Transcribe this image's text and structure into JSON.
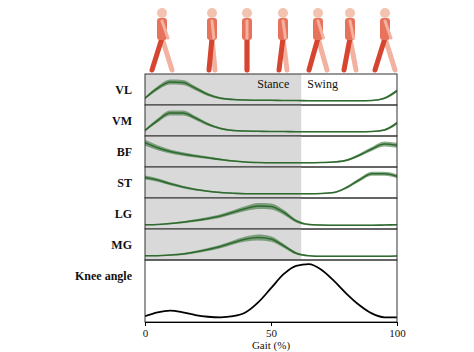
{
  "chart_data": [
    {
      "type": "line",
      "title": "VL",
      "color": "#2f6b2f",
      "xlim": [
        0,
        100
      ],
      "ylim": [
        0,
        1
      ],
      "tick_labels": false,
      "x": [
        0,
        5,
        10,
        15,
        20,
        25,
        30,
        35,
        40,
        45,
        50,
        55,
        60,
        65,
        70,
        75,
        80,
        85,
        90,
        95,
        100
      ],
      "values": [
        0.15,
        0.55,
        0.8,
        0.78,
        0.55,
        0.3,
        0.15,
        0.1,
        0.08,
        0.07,
        0.07,
        0.06,
        0.06,
        0.05,
        0.05,
        0.05,
        0.05,
        0.05,
        0.06,
        0.15,
        0.45
      ],
      "error": [
        0.04,
        0.08,
        0.1,
        0.1,
        0.08,
        0.06,
        0.04,
        0.03,
        0.02,
        0.02,
        0.02,
        0.02,
        0.02,
        0.02,
        0.02,
        0.02,
        0.02,
        0.02,
        0.02,
        0.04,
        0.06
      ]
    },
    {
      "type": "line",
      "title": "VM",
      "color": "#2f6b2f",
      "xlim": [
        0,
        100
      ],
      "ylim": [
        0,
        1
      ],
      "tick_labels": false,
      "x": [
        0,
        5,
        10,
        15,
        20,
        25,
        30,
        35,
        40,
        45,
        50,
        55,
        60,
        65,
        70,
        75,
        80,
        85,
        90,
        95,
        100
      ],
      "values": [
        0.1,
        0.5,
        0.8,
        0.8,
        0.6,
        0.35,
        0.18,
        0.1,
        0.08,
        0.07,
        0.06,
        0.06,
        0.05,
        0.05,
        0.05,
        0.05,
        0.05,
        0.05,
        0.06,
        0.12,
        0.4
      ],
      "error": [
        0.04,
        0.08,
        0.1,
        0.1,
        0.08,
        0.06,
        0.04,
        0.03,
        0.02,
        0.02,
        0.02,
        0.02,
        0.02,
        0.02,
        0.02,
        0.02,
        0.02,
        0.02,
        0.02,
        0.04,
        0.06
      ]
    },
    {
      "type": "line",
      "title": "BF",
      "color": "#2f6b2f",
      "xlim": [
        0,
        100
      ],
      "ylim": [
        0,
        1
      ],
      "tick_labels": false,
      "x": [
        0,
        5,
        10,
        15,
        20,
        25,
        30,
        35,
        40,
        45,
        50,
        55,
        60,
        65,
        70,
        75,
        80,
        85,
        90,
        95,
        100
      ],
      "values": [
        0.85,
        0.65,
        0.5,
        0.4,
        0.32,
        0.25,
        0.18,
        0.12,
        0.08,
        0.06,
        0.05,
        0.05,
        0.05,
        0.05,
        0.06,
        0.08,
        0.15,
        0.35,
        0.6,
        0.8,
        0.75
      ],
      "error": [
        0.12,
        0.1,
        0.08,
        0.07,
        0.06,
        0.05,
        0.04,
        0.03,
        0.02,
        0.02,
        0.02,
        0.02,
        0.02,
        0.02,
        0.02,
        0.03,
        0.04,
        0.06,
        0.08,
        0.1,
        0.1
      ]
    },
    {
      "type": "line",
      "title": "ST",
      "color": "#2f6b2f",
      "xlim": [
        0,
        100
      ],
      "ylim": [
        0,
        1
      ],
      "tick_labels": false,
      "x": [
        0,
        5,
        10,
        15,
        20,
        25,
        30,
        35,
        40,
        45,
        50,
        55,
        60,
        65,
        70,
        75,
        80,
        85,
        90,
        95,
        100
      ],
      "values": [
        0.7,
        0.6,
        0.45,
        0.32,
        0.22,
        0.15,
        0.1,
        0.07,
        0.05,
        0.05,
        0.05,
        0.05,
        0.05,
        0.05,
        0.06,
        0.1,
        0.3,
        0.6,
        0.85,
        0.85,
        0.75
      ],
      "error": [
        0.08,
        0.07,
        0.06,
        0.05,
        0.04,
        0.03,
        0.03,
        0.02,
        0.02,
        0.02,
        0.02,
        0.02,
        0.02,
        0.02,
        0.02,
        0.03,
        0.05,
        0.07,
        0.08,
        0.08,
        0.08
      ]
    },
    {
      "type": "line",
      "title": "LG",
      "color": "#2f6b2f",
      "xlim": [
        0,
        100
      ],
      "ylim": [
        0,
        1
      ],
      "tick_labels": false,
      "x": [
        0,
        5,
        10,
        15,
        20,
        25,
        30,
        35,
        40,
        45,
        50,
        55,
        60,
        65,
        70,
        75,
        80,
        85,
        90,
        95,
        100
      ],
      "values": [
        0.05,
        0.06,
        0.1,
        0.15,
        0.22,
        0.3,
        0.4,
        0.55,
        0.7,
        0.8,
        0.78,
        0.55,
        0.2,
        0.06,
        0.04,
        0.03,
        0.03,
        0.03,
        0.03,
        0.04,
        0.05
      ],
      "error": [
        0.02,
        0.02,
        0.03,
        0.04,
        0.05,
        0.06,
        0.07,
        0.08,
        0.1,
        0.12,
        0.12,
        0.1,
        0.06,
        0.03,
        0.02,
        0.02,
        0.02,
        0.02,
        0.02,
        0.02,
        0.02
      ]
    },
    {
      "type": "line",
      "title": "MG",
      "color": "#2f6b2f",
      "xlim": [
        0,
        100
      ],
      "ylim": [
        0,
        1
      ],
      "tick_labels": false,
      "x": [
        0,
        5,
        10,
        15,
        20,
        25,
        30,
        35,
        40,
        45,
        50,
        55,
        60,
        65,
        70,
        75,
        80,
        85,
        90,
        95,
        100
      ],
      "values": [
        0.05,
        0.05,
        0.08,
        0.12,
        0.2,
        0.3,
        0.42,
        0.58,
        0.72,
        0.78,
        0.72,
        0.45,
        0.15,
        0.05,
        0.03,
        0.03,
        0.03,
        0.03,
        0.03,
        0.03,
        0.04
      ],
      "error": [
        0.02,
        0.02,
        0.03,
        0.04,
        0.05,
        0.06,
        0.07,
        0.08,
        0.1,
        0.12,
        0.11,
        0.08,
        0.05,
        0.02,
        0.02,
        0.02,
        0.02,
        0.02,
        0.02,
        0.02,
        0.02
      ]
    },
    {
      "type": "line",
      "title": "Knee angle",
      "color": "#000000",
      "xlim": [
        0,
        100
      ],
      "ylim": [
        0,
        1
      ],
      "tick_labels": "x",
      "x_label": "Gait (%)",
      "xticks": [
        0,
        50,
        100
      ],
      "x": [
        0,
        5,
        10,
        15,
        20,
        25,
        30,
        35,
        40,
        45,
        50,
        55,
        60,
        65,
        70,
        75,
        80,
        85,
        90,
        95,
        100
      ],
      "values": [
        0.05,
        0.12,
        0.15,
        0.12,
        0.07,
        0.04,
        0.03,
        0.05,
        0.12,
        0.3,
        0.55,
        0.8,
        0.95,
        0.98,
        0.88,
        0.68,
        0.45,
        0.25,
        0.1,
        0.03,
        0.03
      ]
    }
  ],
  "phases": [
    {
      "label": "Stance",
      "range": [
        0,
        62
      ]
    },
    {
      "label": "Swing",
      "range": [
        62,
        100
      ]
    }
  ]
}
